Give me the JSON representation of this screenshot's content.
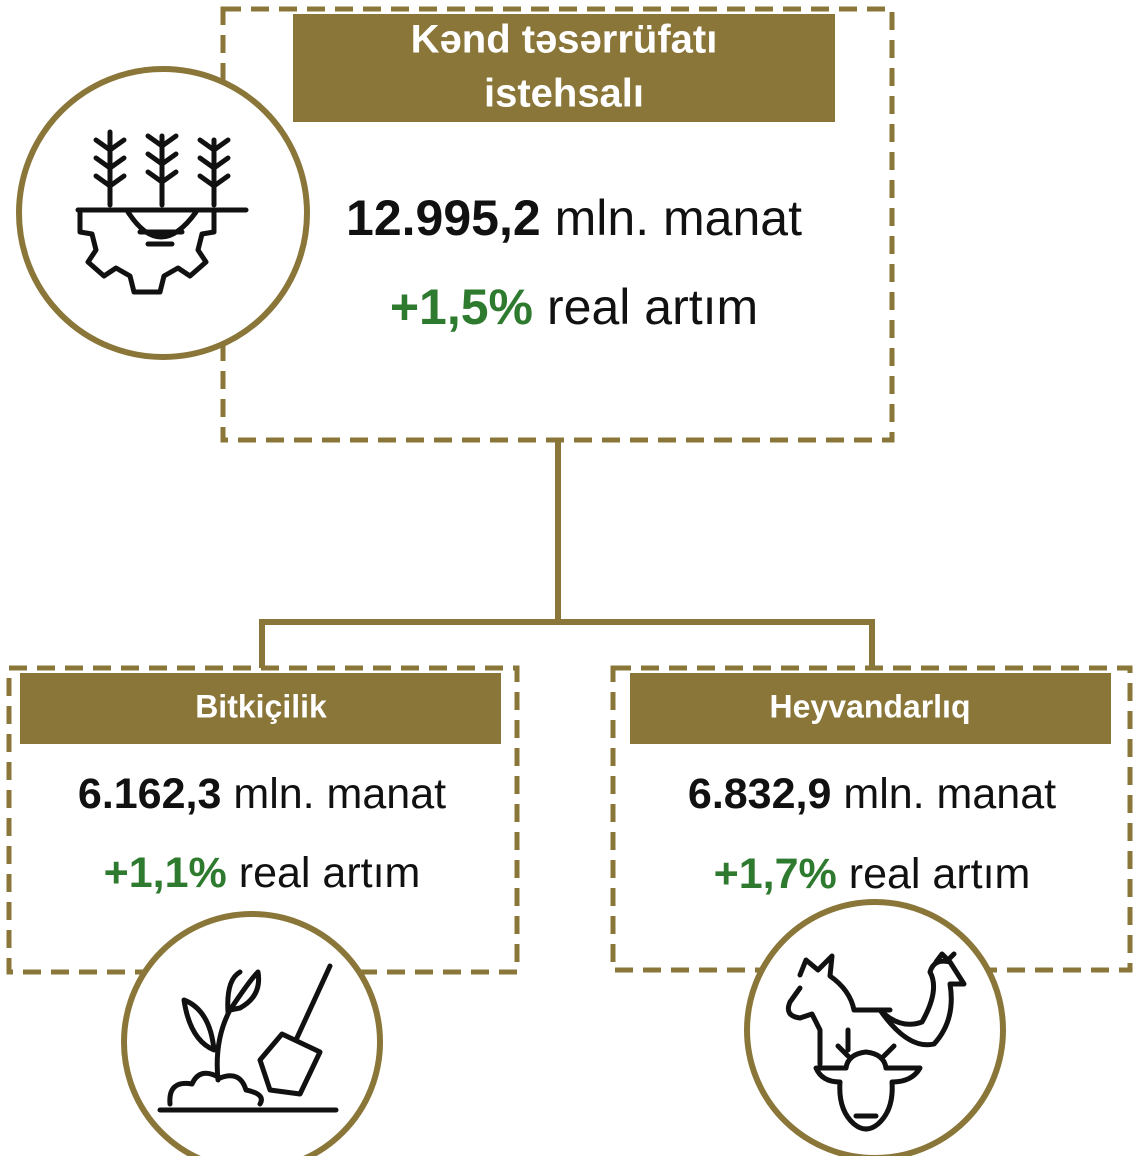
{
  "root": {
    "title_lines": [
      "Kənd təsərrüfatı",
      "istehsalı"
    ],
    "value": "12.995,2",
    "unit": "mln. manat",
    "growth": "+1,5%",
    "growth_label": "real artım"
  },
  "children": [
    {
      "title": "Bitkiçilik",
      "value": "6.162,3",
      "unit": "mln. manat",
      "growth": "+1,1%",
      "growth_label": "real artım"
    },
    {
      "title": "Heyvandarlıq",
      "value": "6.832,9",
      "unit": "mln. manat",
      "growth": "+1,7%",
      "growth_label": "real artım"
    }
  ]
}
